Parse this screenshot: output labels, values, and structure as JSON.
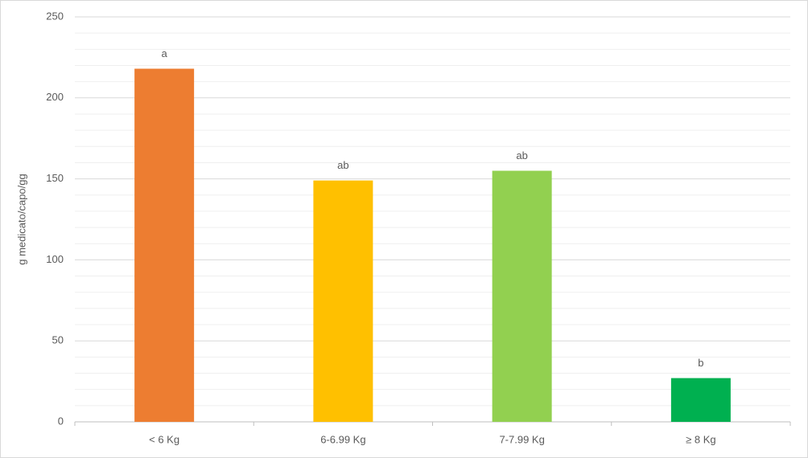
{
  "chart_data": {
    "type": "bar",
    "y_label": "g medicato/capo/gg",
    "categories": [
      "< 6 Kg",
      "6-6.99 Kg",
      "7-7.99 Kg",
      "≥ 8 Kg"
    ],
    "values": [
      218,
      149,
      155,
      27
    ],
    "colors": [
      "#ED7D31",
      "#FFC000",
      "#92D050",
      "#00B050"
    ],
    "annotations": [
      "a",
      "ab",
      "ab",
      "b"
    ],
    "ylim": [
      0,
      250
    ],
    "yticks": [
      0,
      50,
      100,
      150,
      200,
      250
    ],
    "yminorticks": [
      10,
      20,
      30,
      40,
      60,
      70,
      80,
      90,
      110,
      120,
      130,
      140,
      160,
      170,
      180,
      190,
      210,
      220,
      230,
      240
    ],
    "grid": true
  }
}
